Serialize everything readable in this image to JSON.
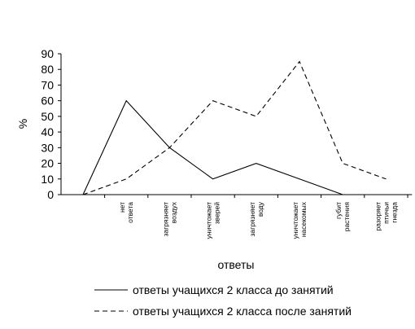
{
  "chart_data": {
    "type": "line",
    "categories": [
      "",
      "нет ответа",
      "загрязняет воздух",
      "уничтожает зверей",
      "загрязняет воду",
      "уничтожает насекомых",
      "губит растения",
      "разоряет птичьи гнезда"
    ],
    "series": [
      {
        "name": "ответы учащихся 2 класса до занятий",
        "values": [
          0,
          60,
          30,
          10,
          20,
          10,
          0,
          null
        ],
        "style": "solid"
      },
      {
        "name": "ответы учащихся 2 класса после занятий",
        "values": [
          0,
          10,
          30,
          60,
          50,
          85,
          20,
          10
        ],
        "style": "dashed"
      }
    ],
    "xlabel": "ответы",
    "ylabel": "%",
    "ylim": [
      0,
      90
    ],
    "yticks": [
      0,
      10,
      20,
      30,
      40,
      50,
      60,
      70,
      80,
      90
    ],
    "grid": false,
    "legend_position": "bottom",
    "colors": {
      "line": "#000000",
      "background": "#ffffff"
    }
  }
}
